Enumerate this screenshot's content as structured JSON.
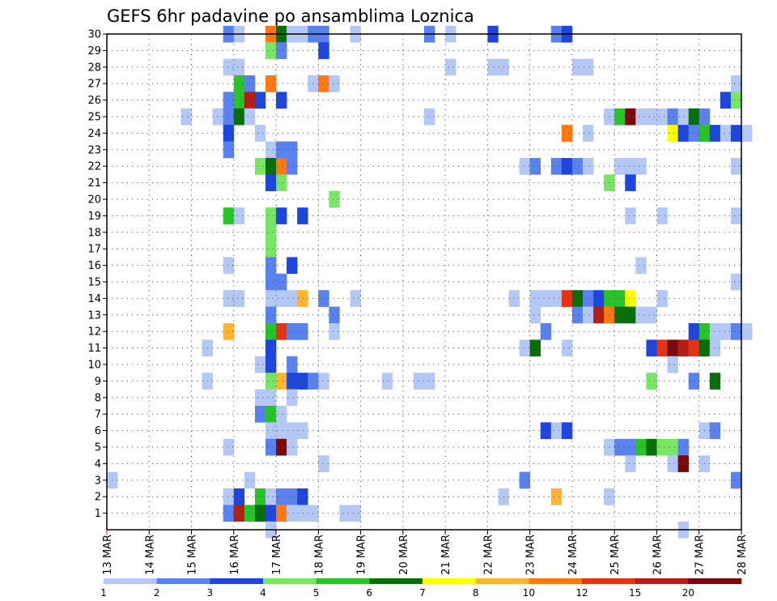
{
  "chart_data": {
    "type": "heatmap",
    "title": "GEFS 6hr padavine po ansamblima Loznica",
    "xlabel": "",
    "ylabel": "",
    "x_tick_labels": [
      "13 MAR",
      "14 MAR",
      "15 MAR",
      "16 MAR",
      "17 MAR",
      "18 MAR",
      "19 MAR",
      "20 MAR",
      "21 MAR",
      "22 MAR",
      "23 MAR",
      "24 MAR",
      "25 MAR",
      "26 MAR",
      "27 MAR",
      "28 MAR"
    ],
    "y_tick_labels": [
      "1",
      "2",
      "3",
      "4",
      "5",
      "6",
      "7",
      "8",
      "9",
      "10",
      "11",
      "12",
      "13",
      "14",
      "15",
      "16",
      "17",
      "18",
      "19",
      "20",
      "21",
      "22",
      "23",
      "24",
      "25",
      "26",
      "27",
      "28",
      "29",
      "30"
    ],
    "grid": true,
    "x_unit": "6-hour steps from 13 MAR 00Z",
    "ensemble_members": 30,
    "colorbar": {
      "labels": [
        "1",
        "2",
        "3",
        "4",
        "5",
        "6",
        "7",
        "8",
        "10",
        "12",
        "15",
        "20"
      ],
      "colors": [
        "#b4c8f5",
        "#5a82ee",
        "#1e46dc",
        "#78e664",
        "#28c328",
        "#086e08",
        "#ffff00",
        "#ffb432",
        "#ff7814",
        "#e63214",
        "#b41e14",
        "#780a0a"
      ],
      "placement": "bottom"
    },
    "cells": [
      {
        "m": 30,
        "t": [
          [
            11,
            2
          ],
          [
            12,
            1
          ],
          [
            15,
            9
          ],
          [
            16,
            6
          ],
          [
            17,
            1
          ],
          [
            18,
            1
          ],
          [
            19,
            2
          ],
          [
            20,
            2
          ],
          [
            23,
            1
          ],
          [
            30,
            2
          ],
          [
            32,
            1
          ],
          [
            36,
            3
          ],
          [
            42,
            2
          ],
          [
            43,
            3
          ]
        ]
      },
      {
        "m": 29,
        "t": [
          [
            15,
            4
          ],
          [
            16,
            2
          ],
          [
            20,
            3
          ]
        ]
      },
      {
        "m": 28,
        "t": [
          [
            11,
            1
          ],
          [
            12,
            1
          ],
          [
            32,
            1
          ],
          [
            36,
            1
          ],
          [
            37,
            1
          ],
          [
            44,
            1
          ],
          [
            45,
            1
          ]
        ]
      },
      {
        "m": 27,
        "t": [
          [
            12,
            5
          ],
          [
            13,
            2
          ],
          [
            15,
            9
          ],
          [
            19,
            1
          ],
          [
            20,
            9
          ],
          [
            21,
            1
          ],
          [
            59,
            1
          ]
        ]
      },
      {
        "m": 26,
        "t": [
          [
            11,
            2
          ],
          [
            12,
            5
          ],
          [
            13,
            11
          ],
          [
            14,
            3
          ],
          [
            16,
            3
          ],
          [
            58,
            3
          ],
          [
            59,
            4
          ]
        ]
      },
      {
        "m": 25,
        "t": [
          [
            7,
            1
          ],
          [
            10,
            1
          ],
          [
            11,
            2
          ],
          [
            12,
            6
          ],
          [
            13,
            1
          ],
          [
            30,
            1
          ],
          [
            47,
            1
          ],
          [
            48,
            5
          ],
          [
            49,
            12
          ],
          [
            50,
            1
          ],
          [
            51,
            1
          ],
          [
            52,
            1
          ],
          [
            53,
            2
          ],
          [
            54,
            1
          ],
          [
            55,
            6
          ],
          [
            56,
            2
          ]
        ]
      },
      {
        "m": 24,
        "t": [
          [
            11,
            3
          ],
          [
            14,
            1
          ],
          [
            43,
            9
          ],
          [
            45,
            1
          ],
          [
            53,
            7
          ],
          [
            54,
            3
          ],
          [
            55,
            2
          ],
          [
            56,
            5
          ],
          [
            57,
            3
          ],
          [
            58,
            1
          ],
          [
            59,
            3
          ],
          [
            60,
            1
          ]
        ]
      },
      {
        "m": 23,
        "t": [
          [
            11,
            2
          ],
          [
            15,
            1
          ],
          [
            16,
            2
          ],
          [
            17,
            2
          ]
        ]
      },
      {
        "m": 22,
        "t": [
          [
            14,
            4
          ],
          [
            15,
            6
          ],
          [
            16,
            9
          ],
          [
            17,
            2
          ],
          [
            39,
            1
          ],
          [
            40,
            2
          ],
          [
            42,
            2
          ],
          [
            43,
            3
          ],
          [
            44,
            2
          ],
          [
            45,
            1
          ],
          [
            48,
            1
          ],
          [
            49,
            1
          ],
          [
            50,
            1
          ],
          [
            59,
            1
          ]
        ]
      },
      {
        "m": 21,
        "t": [
          [
            15,
            3
          ],
          [
            16,
            4
          ],
          [
            47,
            4
          ],
          [
            49,
            3
          ]
        ]
      },
      {
        "m": 20,
        "t": [
          [
            21,
            4
          ]
        ]
      },
      {
        "m": 19,
        "t": [
          [
            11,
            5
          ],
          [
            12,
            1
          ],
          [
            15,
            4
          ],
          [
            16,
            3
          ],
          [
            18,
            3
          ],
          [
            49,
            1
          ],
          [
            52,
            1
          ],
          [
            59,
            1
          ]
        ]
      },
      {
        "m": 18,
        "t": [
          [
            15,
            4
          ]
        ]
      },
      {
        "m": 17,
        "t": [
          [
            15,
            4
          ]
        ]
      },
      {
        "m": 16,
        "t": [
          [
            11,
            1
          ],
          [
            15,
            2
          ],
          [
            17,
            3
          ],
          [
            50,
            1
          ]
        ]
      },
      {
        "m": 15,
        "t": [
          [
            15,
            2
          ],
          [
            16,
            2
          ],
          [
            59,
            1
          ]
        ]
      },
      {
        "m": 14,
        "t": [
          [
            11,
            1
          ],
          [
            12,
            1
          ],
          [
            15,
            1
          ],
          [
            16,
            1
          ],
          [
            17,
            1
          ],
          [
            18,
            8
          ],
          [
            20,
            2
          ],
          [
            23,
            1
          ],
          [
            38,
            1
          ],
          [
            40,
            1
          ],
          [
            41,
            1
          ],
          [
            42,
            1
          ],
          [
            43,
            10
          ],
          [
            44,
            6
          ],
          [
            45,
            2
          ],
          [
            46,
            3
          ],
          [
            47,
            5
          ],
          [
            48,
            5
          ],
          [
            49,
            7
          ],
          [
            52,
            1
          ]
        ]
      },
      {
        "m": 13,
        "t": [
          [
            15,
            2
          ],
          [
            21,
            2
          ],
          [
            40,
            1
          ],
          [
            44,
            2
          ],
          [
            45,
            1
          ],
          [
            46,
            11
          ],
          [
            47,
            9
          ],
          [
            48,
            6
          ],
          [
            49,
            6
          ],
          [
            50,
            1
          ],
          [
            51,
            1
          ]
        ]
      },
      {
        "m": 12,
        "t": [
          [
            11,
            8
          ],
          [
            15,
            5
          ],
          [
            16,
            10
          ],
          [
            17,
            2
          ],
          [
            18,
            2
          ],
          [
            21,
            1
          ],
          [
            41,
            2
          ],
          [
            55,
            3
          ],
          [
            56,
            5
          ],
          [
            57,
            1
          ],
          [
            58,
            1
          ],
          [
            59,
            2
          ],
          [
            60,
            1
          ]
        ]
      },
      {
        "m": 11,
        "t": [
          [
            9,
            1
          ],
          [
            15,
            3
          ],
          [
            39,
            1
          ],
          [
            40,
            6
          ],
          [
            43,
            1
          ],
          [
            51,
            3
          ],
          [
            52,
            10
          ],
          [
            53,
            12
          ],
          [
            54,
            11
          ],
          [
            55,
            10
          ],
          [
            56,
            6
          ],
          [
            57,
            1
          ]
        ]
      },
      {
        "m": 10,
        "t": [
          [
            14,
            1
          ],
          [
            15,
            3
          ],
          [
            17,
            2
          ],
          [
            53,
            1
          ]
        ]
      },
      {
        "m": 9,
        "t": [
          [
            9,
            1
          ],
          [
            15,
            4
          ],
          [
            16,
            8
          ],
          [
            17,
            3
          ],
          [
            18,
            3
          ],
          [
            19,
            2
          ],
          [
            20,
            1
          ],
          [
            26,
            1
          ],
          [
            29,
            1
          ],
          [
            30,
            1
          ],
          [
            51,
            4
          ],
          [
            55,
            2
          ],
          [
            57,
            6
          ]
        ]
      },
      {
        "m": 8,
        "t": [
          [
            14,
            1
          ],
          [
            15,
            1
          ],
          [
            17,
            1
          ]
        ]
      },
      {
        "m": 7,
        "t": [
          [
            14,
            2
          ],
          [
            15,
            5
          ],
          [
            16,
            1
          ]
        ]
      },
      {
        "m": 6,
        "t": [
          [
            15,
            1
          ],
          [
            16,
            1
          ],
          [
            17,
            1
          ],
          [
            18,
            1
          ],
          [
            41,
            3
          ],
          [
            42,
            1
          ],
          [
            43,
            3
          ],
          [
            56,
            1
          ],
          [
            57,
            2
          ]
        ]
      },
      {
        "m": 5,
        "t": [
          [
            11,
            1
          ],
          [
            15,
            2
          ],
          [
            16,
            12
          ],
          [
            17,
            1
          ],
          [
            47,
            1
          ],
          [
            48,
            2
          ],
          [
            49,
            2
          ],
          [
            50,
            5
          ],
          [
            51,
            6
          ],
          [
            52,
            4
          ],
          [
            53,
            4
          ],
          [
            54,
            2
          ]
        ]
      },
      {
        "m": 4,
        "t": [
          [
            20,
            1
          ],
          [
            49,
            1
          ],
          [
            53,
            1
          ],
          [
            54,
            12
          ],
          [
            56,
            1
          ]
        ]
      },
      {
        "m": 3,
        "t": [
          [
            0,
            1
          ],
          [
            13,
            1
          ],
          [
            39,
            2
          ],
          [
            59,
            2
          ]
        ]
      },
      {
        "m": 2,
        "t": [
          [
            11,
            1
          ],
          [
            12,
            3
          ],
          [
            14,
            5
          ],
          [
            15,
            1
          ],
          [
            16,
            2
          ],
          [
            17,
            2
          ],
          [
            18,
            3
          ],
          [
            37,
            1
          ],
          [
            42,
            8
          ],
          [
            47,
            1
          ]
        ]
      },
      {
        "m": 1,
        "t": [
          [
            11,
            2
          ],
          [
            12,
            11
          ],
          [
            13,
            5
          ],
          [
            14,
            6
          ],
          [
            15,
            3
          ],
          [
            16,
            9
          ],
          [
            17,
            1
          ],
          [
            18,
            1
          ],
          [
            19,
            1
          ],
          [
            22,
            1
          ],
          [
            23,
            1
          ]
        ]
      },
      {
        "m": 0,
        "t": [
          [
            15,
            1
          ],
          [
            54,
            1
          ]
        ]
      }
    ]
  }
}
